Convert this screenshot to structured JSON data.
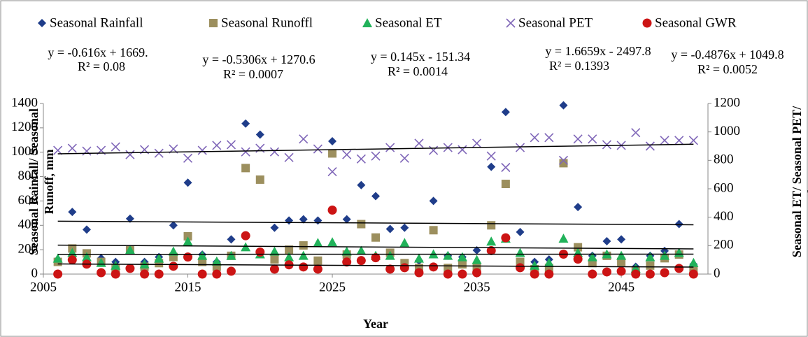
{
  "chart_data": {
    "type": "scatter",
    "x_label": "Year",
    "y_label": "Seasonal Rainfall/ Seasonal Runoff, mm",
    "y2_label": "Seasonal ET/ Seasonal PET/ Seasonal GWR, mm",
    "x": [
      2006,
      2007,
      2008,
      2009,
      2010,
      2011,
      2012,
      2013,
      2014,
      2015,
      2016,
      2017,
      2018,
      2019,
      2020,
      2021,
      2022,
      2023,
      2024,
      2025,
      2026,
      2027,
      2028,
      2029,
      2030,
      2031,
      2032,
      2033,
      2034,
      2035,
      2036,
      2037,
      2038,
      2039,
      2040,
      2041,
      2042,
      2043,
      2044,
      2045,
      2046,
      2047,
      2048,
      2049,
      2050
    ],
    "xlim": [
      2005,
      2051
    ],
    "xticks": [
      2005,
      2015,
      2025,
      2035,
      2045
    ],
    "ylim": [
      0,
      1400
    ],
    "yticks": [
      0,
      200,
      400,
      600,
      800,
      1000,
      1200,
      1400
    ],
    "y2lim": [
      0,
      1200
    ],
    "y2ticks": [
      0,
      200,
      400,
      600,
      800,
      1000,
      1200
    ],
    "trendline": true,
    "series": [
      {
        "name": "Seasonal Rainfall",
        "color": "#1f3d8a",
        "marker": "diamond",
        "values": [
          120,
          510,
          365,
          130,
          100,
          455,
          100,
          140,
          400,
          750,
          160,
          100,
          285,
          1235,
          1145,
          380,
          440,
          450,
          440,
          1090,
          450,
          730,
          640,
          370,
          380,
          110,
          600,
          150,
          140,
          195,
          880,
          1330,
          345,
          100,
          120,
          1385,
          550,
          150,
          270,
          285,
          60,
          150,
          190,
          410,
          80
        ]
      },
      {
        "name": "Seasonal Runoffl",
        "color": "#9c8f5e",
        "marker": "square",
        "values": [
          100,
          210,
          170,
          100,
          50,
          195,
          60,
          90,
          140,
          310,
          100,
          60,
          150,
          870,
          775,
          120,
          200,
          235,
          110,
          990,
          160,
          410,
          300,
          175,
          90,
          50,
          360,
          50,
          80,
          60,
          400,
          740,
          100,
          40,
          50,
          910,
          220,
          90,
          150,
          100,
          30,
          70,
          130,
          160,
          30
        ]
      },
      {
        "name": "Seasonal ET",
        "color": "#21b25a",
        "marker": "triangle",
        "axis": "y2",
        "values": [
          110,
          150,
          120,
          80,
          60,
          170,
          70,
          110,
          160,
          230,
          130,
          90,
          130,
          190,
          140,
          160,
          120,
          130,
          220,
          225,
          160,
          165,
          130,
          130,
          220,
          110,
          140,
          130,
          120,
          100,
          230,
          250,
          150,
          60,
          80,
          250,
          150,
          120,
          140,
          130,
          40,
          120,
          130,
          150,
          80
        ]
      },
      {
        "name": "Seasonal PET",
        "color": "#7f66b8",
        "marker": "x",
        "axis": "y2",
        "values": [
          870,
          885,
          865,
          870,
          895,
          840,
          875,
          850,
          880,
          815,
          870,
          905,
          910,
          860,
          885,
          860,
          820,
          950,
          880,
          720,
          840,
          810,
          830,
          890,
          815,
          920,
          870,
          890,
          875,
          920,
          830,
          750,
          890,
          960,
          960,
          800,
          950,
          950,
          910,
          905,
          995,
          900,
          940,
          940,
          940
        ]
      },
      {
        "name": "Seasonal GWR",
        "color": "#cc1414",
        "marker": "circle",
        "axis": "y2",
        "values": [
          0,
          100,
          70,
          10,
          0,
          40,
          0,
          0,
          55,
          120,
          0,
          0,
          20,
          270,
          155,
          35,
          65,
          50,
          35,
          450,
          85,
          95,
          115,
          35,
          45,
          10,
          50,
          0,
          0,
          10,
          165,
          255,
          45,
          0,
          0,
          140,
          105,
          0,
          15,
          20,
          0,
          0,
          10,
          40,
          0
        ]
      }
    ],
    "equations": [
      {
        "equation": "y = -0.616x + 1669.",
        "r2": "R² = 0.08"
      },
      {
        "equation": "y = -0.5306x + 1270.6",
        "r2": "R² = 0.0007"
      },
      {
        "equation": "y = 0.145x - 151.34",
        "r2": "R² = 0.0014"
      },
      {
        "equation": "y = 1.6659x - 2497.8",
        "r2": "R² = 0.1393"
      },
      {
        "equation": "y = -0.4876x + 1049.8",
        "r2": "R² = 0.0052"
      }
    ]
  }
}
